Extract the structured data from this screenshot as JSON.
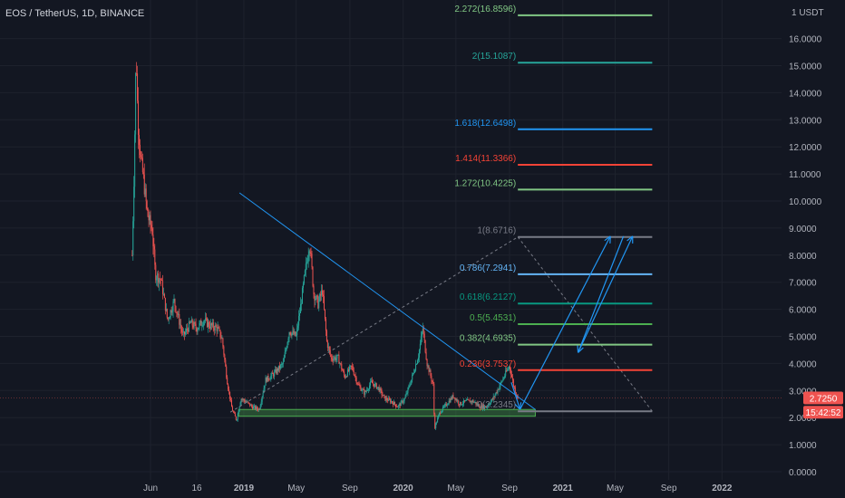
{
  "header": {
    "title": "EOS / TetherUS, 1D, BINANCE"
  },
  "colors": {
    "background": "#131722",
    "grid": "#1e222d",
    "text": "#b2b5be",
    "up": "#26a69a",
    "down": "#ef5350",
    "trendline": "#2196f3",
    "dashed": "#787b86",
    "badge": "#ef5350",
    "support_band": "#4caf50"
  },
  "chart_data": {
    "type": "candlestick",
    "title": "EOS / TetherUS, 1D, BINANCE",
    "ylim": [
      0,
      17
    ],
    "y_axis": {
      "unit_label": "1 USDT",
      "ticks": [
        "16.0000",
        "15.0000",
        "14.0000",
        "13.0000",
        "12.0000",
        "11.0000",
        "10.0000",
        "9.0000",
        "8.0000",
        "7.0000",
        "6.0000",
        "5.0000",
        "4.0000",
        "3.0000",
        "2.0000",
        "1.0000",
        "0.0000"
      ],
      "tick_values": [
        16,
        15,
        14,
        13,
        12,
        11,
        10,
        9,
        8,
        7,
        6,
        5,
        4,
        3,
        2,
        1,
        0
      ]
    },
    "x_axis": {
      "ticks": [
        "Jun",
        "16",
        "2019",
        "May",
        "Sep",
        "2020",
        "May",
        "Sep",
        "2021",
        "May",
        "Sep",
        "2022"
      ],
      "bold": [
        false,
        false,
        true,
        false,
        false,
        true,
        false,
        false,
        true,
        false,
        false,
        true
      ]
    },
    "price_path": [
      [
        "2018-04-20",
        8.0
      ],
      [
        "2018-04-25",
        11.5
      ],
      [
        "2018-04-29",
        15.6
      ],
      [
        "2018-05-03",
        13.0
      ],
      [
        "2018-05-10",
        11.5
      ],
      [
        "2018-05-16",
        10.8
      ],
      [
        "2018-05-25",
        9.5
      ],
      [
        "2018-06-05",
        8.9
      ],
      [
        "2018-06-12",
        7.3
      ],
      [
        "2018-06-25",
        7.1
      ],
      [
        "2018-07-10",
        5.6
      ],
      [
        "2018-07-25",
        6.3
      ],
      [
        "2018-08-15",
        5.0
      ],
      [
        "2018-09-01",
        5.5
      ],
      [
        "2018-09-15",
        5.3
      ],
      [
        "2018-10-01",
        5.6
      ],
      [
        "2018-10-15",
        5.4
      ],
      [
        "2018-11-01",
        5.3
      ],
      [
        "2018-11-12",
        4.9
      ],
      [
        "2018-11-25",
        3.2
      ],
      [
        "2018-12-05",
        2.3
      ],
      [
        "2018-12-15",
        1.9
      ],
      [
        "2018-12-25",
        2.7
      ],
      [
        "2019-01-05",
        2.6
      ],
      [
        "2019-01-20",
        2.4
      ],
      [
        "2019-02-05",
        2.3
      ],
      [
        "2019-02-20",
        3.4
      ],
      [
        "2019-03-10",
        3.6
      ],
      [
        "2019-04-01",
        4.0
      ],
      [
        "2019-04-15",
        5.2
      ],
      [
        "2019-05-01",
        5.0
      ],
      [
        "2019-05-10",
        6.0
      ],
      [
        "2019-05-20",
        7.2
      ],
      [
        "2019-06-01",
        8.5
      ],
      [
        "2019-06-10",
        6.6
      ],
      [
        "2019-06-20",
        6.2
      ],
      [
        "2019-06-30",
        6.7
      ],
      [
        "2019-07-10",
        4.8
      ],
      [
        "2019-07-20",
        4.2
      ],
      [
        "2019-08-05",
        4.2
      ],
      [
        "2019-08-20",
        3.5
      ],
      [
        "2019-09-05",
        3.9
      ],
      [
        "2019-09-20",
        3.2
      ],
      [
        "2019-10-05",
        2.9
      ],
      [
        "2019-10-20",
        3.3
      ],
      [
        "2019-11-05",
        3.1
      ],
      [
        "2019-11-20",
        2.7
      ],
      [
        "2019-12-05",
        2.6
      ],
      [
        "2019-12-20",
        2.4
      ],
      [
        "2020-01-05",
        2.7
      ],
      [
        "2020-01-20",
        3.4
      ],
      [
        "2020-02-05",
        4.3
      ],
      [
        "2020-02-15",
        5.3
      ],
      [
        "2020-02-25",
        4.0
      ],
      [
        "2020-03-10",
        3.2
      ],
      [
        "2020-03-13",
        1.6
      ],
      [
        "2020-03-25",
        2.2
      ],
      [
        "2020-04-10",
        2.5
      ],
      [
        "2020-04-25",
        2.8
      ],
      [
        "2020-05-10",
        2.5
      ],
      [
        "2020-05-25",
        2.6
      ],
      [
        "2020-06-10",
        2.6
      ],
      [
        "2020-06-25",
        2.4
      ],
      [
        "2020-07-10",
        2.4
      ],
      [
        "2020-07-25",
        2.7
      ],
      [
        "2020-08-10",
        3.2
      ],
      [
        "2020-08-25",
        3.7
      ],
      [
        "2020-09-01",
        3.9
      ],
      [
        "2020-09-10",
        3.2
      ],
      [
        "2020-09-20",
        2.7
      ]
    ],
    "fib_levels": [
      {
        "label": "2.272(16.8596)",
        "value": 16.8596,
        "color": "#81c784"
      },
      {
        "label": "2(15.1087)",
        "value": 15.1087,
        "color": "#26a69a"
      },
      {
        "label": "1.618(12.6498)",
        "value": 12.6498,
        "color": "#2196f3"
      },
      {
        "label": "1.414(11.3366)",
        "value": 11.3366,
        "color": "#f44336"
      },
      {
        "label": "1.272(10.4225)",
        "value": 10.4225,
        "color": "#81c784"
      },
      {
        "label": "1(8.6716)",
        "value": 8.6716,
        "color": "#787b86"
      },
      {
        "label": "0.786(7.2941)",
        "value": 7.2941,
        "color": "#64b5f6"
      },
      {
        "label": "0.618(6.2127)",
        "value": 6.2127,
        "color": "#089981"
      },
      {
        "label": "0.5(5.4531)",
        "value": 5.4531,
        "color": "#4caf50"
      },
      {
        "label": "0.382(4.6935)",
        "value": 4.6935,
        "color": "#81c784"
      },
      {
        "label": "0.236(3.7537)",
        "value": 3.7537,
        "color": "#f44336"
      },
      {
        "label": "0(2.2345)",
        "value": 2.2345,
        "color": "#787b86"
      }
    ],
    "fib_start_date": "2020-09-20",
    "fib_end_date": "2021-07-25",
    "trendline": [
      [
        "2018-12-22",
        10.3
      ],
      [
        "2020-10-30",
        2.3
      ]
    ],
    "dashed_lines": [
      [
        [
          "2018-12-01",
          2.2
        ],
        [
          "2020-09-20",
          8.6716
        ]
      ],
      [
        [
          "2020-09-20",
          8.6716
        ],
        [
          "2021-07-25",
          2.2345
        ]
      ]
    ],
    "projection_arrows": [
      [
        [
          "2020-09-05",
          3.3
        ],
        [
          "2020-09-25",
          2.3
        ]
      ],
      [
        [
          "2020-09-25",
          2.3
        ],
        [
          "2021-04-20",
          8.7
        ]
      ],
      [
        [
          "2021-05-20",
          8.7
        ],
        [
          "2021-02-05",
          4.4
        ]
      ],
      [
        [
          "2021-02-05",
          4.4
        ],
        [
          "2021-06-10",
          8.7
        ]
      ]
    ],
    "support_band": {
      "start": "2018-12-20",
      "end": "2020-10-30",
      "bottom": 2.05,
      "top": 2.3
    },
    "current_price": {
      "label": "2.7250",
      "value": 2.725
    },
    "countdown": {
      "label": "15:42:52",
      "value": 2.2
    }
  }
}
